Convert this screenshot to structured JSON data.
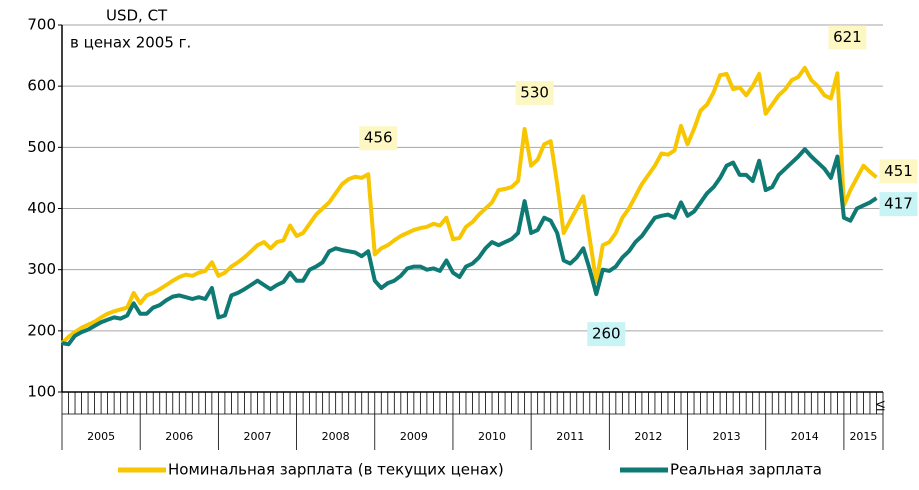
{
  "chart_data": {
    "type": "line",
    "axis_title": [
      "USD, СТ",
      "в ценах 2005 г."
    ],
    "categories": [
      null,
      null,
      null,
      null,
      null,
      null,
      null,
      null,
      null,
      null,
      null,
      null,
      null,
      null,
      null,
      null,
      null,
      null,
      null,
      null,
      null,
      null,
      null,
      null,
      null,
      null,
      null,
      null,
      null,
      null,
      null,
      null,
      null,
      null,
      null,
      null,
      null,
      null,
      null,
      null,
      null,
      null,
      null,
      null,
      null,
      null,
      null,
      null,
      null,
      null,
      null,
      null,
      null,
      null,
      null,
      null,
      null,
      null,
      null,
      null,
      null,
      null,
      null,
      null,
      null,
      null,
      null,
      null,
      null,
      null,
      null,
      null,
      null,
      null,
      null,
      null,
      null,
      null,
      null,
      null,
      null,
      null,
      null,
      null,
      null,
      null,
      null,
      null,
      null,
      null,
      null,
      null,
      null,
      null,
      null,
      null,
      null,
      null,
      null,
      null,
      null,
      null,
      null,
      null,
      null,
      null,
      null,
      null,
      null,
      null,
      null,
      null,
      null,
      null,
      null,
      null,
      null,
      null,
      null,
      null,
      null,
      null,
      null,
      null,
      null,
      "VI"
    ],
    "year_labels": [
      "2005",
      "2006",
      "2007",
      "2008",
      "2009",
      "2010",
      "2011",
      "2012",
      "2013",
      "2014",
      "2015"
    ],
    "ylim": [
      100,
      700
    ],
    "yticks": [
      100,
      200,
      300,
      400,
      500,
      600,
      700
    ],
    "grid": true,
    "series": [
      {
        "name": "Номинальная зарплата (в текущих ценах)",
        "color": "#f7c600",
        "label_bg": "#fdf7c4",
        "values": [
          180,
          190,
          198,
          205,
          210,
          215,
          222,
          228,
          232,
          235,
          238,
          262,
          245,
          258,
          262,
          268,
          275,
          282,
          288,
          292,
          290,
          295,
          298,
          312,
          290,
          295,
          305,
          312,
          320,
          330,
          340,
          345,
          335,
          345,
          348,
          372,
          355,
          360,
          375,
          390,
          400,
          410,
          425,
          440,
          448,
          452,
          450,
          456,
          325,
          335,
          340,
          348,
          355,
          360,
          365,
          368,
          370,
          375,
          372,
          385,
          350,
          352,
          370,
          378,
          390,
          400,
          410,
          430,
          432,
          435,
          445,
          530,
          470,
          480,
          505,
          510,
          440,
          360,
          380,
          400,
          420,
          350,
          280,
          340,
          345,
          360,
          385,
          400,
          420,
          440,
          455,
          470,
          490,
          488,
          495,
          535,
          505,
          530,
          560,
          570,
          590,
          618,
          620,
          595,
          598,
          585,
          600,
          620,
          555,
          570,
          585,
          595,
          610,
          615,
          630,
          610,
          600,
          585,
          580,
          621,
          405,
          430,
          450,
          470,
          460,
          451
        ],
        "value_labels": [
          null,
          null,
          null,
          null,
          null,
          null,
          null,
          null,
          null,
          null,
          null,
          null,
          null,
          null,
          null,
          null,
          null,
          null,
          null,
          null,
          null,
          null,
          null,
          null,
          null,
          null,
          null,
          null,
          null,
          null,
          null,
          null,
          null,
          null,
          null,
          null,
          null,
          null,
          null,
          null,
          null,
          null,
          null,
          null,
          null,
          null,
          null,
          "456",
          null,
          null,
          null,
          null,
          null,
          null,
          null,
          null,
          null,
          null,
          null,
          null,
          null,
          null,
          null,
          null,
          null,
          null,
          null,
          null,
          null,
          null,
          null,
          "530",
          null,
          null,
          null,
          null,
          null,
          null,
          null,
          null,
          null,
          null,
          null,
          null,
          null,
          null,
          null,
          null,
          null,
          null,
          null,
          null,
          null,
          null,
          null,
          null,
          null,
          null,
          null,
          null,
          null,
          null,
          null,
          null,
          null,
          null,
          null,
          null,
          null,
          null,
          null,
          null,
          null,
          null,
          null,
          null,
          null,
          null,
          null,
          "621",
          null,
          null,
          null,
          null,
          null,
          "451"
        ]
      },
      {
        "name": "Реальная зарплата",
        "color": "#0e7a73",
        "label_bg": "#c8f4f6",
        "values": [
          180,
          178,
          192,
          198,
          202,
          208,
          214,
          218,
          222,
          220,
          225,
          245,
          228,
          228,
          238,
          242,
          250,
          256,
          258,
          255,
          252,
          255,
          252,
          270,
          222,
          225,
          258,
          262,
          268,
          275,
          282,
          275,
          268,
          275,
          280,
          295,
          282,
          282,
          300,
          305,
          312,
          330,
          335,
          332,
          330,
          328,
          322,
          330,
          282,
          270,
          278,
          282,
          290,
          302,
          305,
          305,
          300,
          302,
          298,
          315,
          295,
          288,
          305,
          310,
          320,
          335,
          345,
          340,
          345,
          350,
          360,
          412,
          360,
          365,
          385,
          380,
          360,
          315,
          310,
          320,
          335,
          300,
          260,
          300,
          298,
          305,
          320,
          330,
          345,
          355,
          370,
          385,
          388,
          390,
          385,
          410,
          388,
          395,
          410,
          425,
          435,
          450,
          470,
          475,
          455,
          455,
          445,
          478,
          430,
          435,
          455,
          465,
          475,
          485,
          497,
          485,
          475,
          465,
          450,
          485,
          385,
          380,
          400,
          405,
          410,
          417
        ],
        "value_labels": [
          null,
          null,
          null,
          null,
          null,
          null,
          null,
          null,
          null,
          null,
          null,
          null,
          null,
          null,
          null,
          null,
          null,
          null,
          null,
          null,
          null,
          null,
          null,
          null,
          null,
          null,
          null,
          null,
          null,
          null,
          null,
          null,
          null,
          null,
          null,
          null,
          null,
          null,
          null,
          null,
          null,
          null,
          null,
          null,
          null,
          null,
          null,
          null,
          null,
          null,
          null,
          null,
          null,
          null,
          null,
          null,
          null,
          null,
          null,
          null,
          null,
          null,
          null,
          null,
          null,
          null,
          null,
          null,
          null,
          null,
          null,
          null,
          null,
          null,
          null,
          null,
          null,
          null,
          null,
          null,
          null,
          null,
          "260",
          null,
          null,
          null,
          null,
          null,
          null,
          null,
          null,
          null,
          null,
          null,
          null,
          null,
          null,
          null,
          null,
          null,
          null,
          null,
          null,
          null,
          null,
          null,
          null,
          null,
          null,
          null,
          null,
          null,
          null,
          null,
          null,
          null,
          null,
          null,
          null,
          null,
          null,
          null,
          null,
          null,
          null,
          "417"
        ]
      }
    ]
  }
}
